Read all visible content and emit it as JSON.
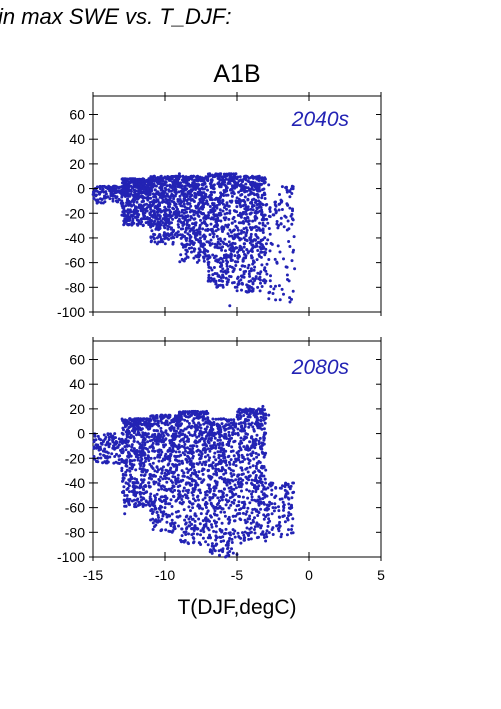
{
  "figure": {
    "header": "in max SWE vs. T_DJF:",
    "title": "A1B",
    "xlabel": "T(DJF,degC)"
  },
  "colors": {
    "points": "#2323b4",
    "period_label": "#2323b4",
    "axes": "#000000"
  },
  "chart_data": [
    {
      "type": "scatter",
      "title": "2040s",
      "xlabel": "",
      "ylabel": "",
      "xlim": [
        -15,
        5
      ],
      "ylim": [
        -100,
        75
      ],
      "x_ticks": [
        -15,
        -10,
        -5,
        0,
        5
      ],
      "y_ticks": [
        -100,
        -80,
        -60,
        -40,
        -20,
        0,
        20,
        40,
        60
      ],
      "x_tick_labels_shown": false,
      "grid": false,
      "point_count_approx": 3000,
      "distribution": [
        {
          "x_range": [
            -15,
            -13
          ],
          "y_range": [
            -12,
            2
          ]
        },
        {
          "x_range": [
            -13,
            -11
          ],
          "y_range": [
            -30,
            8
          ]
        },
        {
          "x_range": [
            -11,
            -9
          ],
          "y_range": [
            -45,
            10
          ]
        },
        {
          "x_range": [
            -9,
            -7
          ],
          "y_range": [
            -60,
            10
          ]
        },
        {
          "x_range": [
            -7,
            -5
          ],
          "y_range": [
            -80,
            12
          ]
        },
        {
          "x_range": [
            -5,
            -3
          ],
          "y_range": [
            -85,
            10
          ]
        },
        {
          "x_range": [
            -3,
            -1
          ],
          "y_range": [
            -92,
            2
          ]
        }
      ],
      "points": [
        [
          -14.6,
          -3
        ],
        [
          -14.2,
          -6
        ],
        [
          -13.5,
          -2
        ],
        [
          -13.0,
          -10
        ],
        [
          -12.5,
          -5
        ],
        [
          -12.0,
          -20
        ],
        [
          -11.5,
          5
        ],
        [
          -11.0,
          -30
        ],
        [
          -10.5,
          -15
        ],
        [
          -10.0,
          -40
        ],
        [
          -9.5,
          8
        ],
        [
          -9.0,
          -25
        ],
        [
          -8.5,
          -50
        ],
        [
          -8.0,
          -10
        ],
        [
          -7.5,
          -45
        ],
        [
          -7.0,
          -60
        ],
        [
          -6.5,
          -30
        ],
        [
          -6.0,
          -70
        ],
        [
          -5.5,
          -20
        ],
        [
          -5.0,
          -80
        ],
        [
          -4.5,
          -40
        ],
        [
          -4.0,
          -65
        ],
        [
          -3.5,
          -10
        ],
        [
          -3.0,
          -75
        ],
        [
          -2.5,
          -85
        ],
        [
          -2.0,
          -90
        ],
        [
          -1.5,
          -70
        ],
        [
          -1.0,
          -65
        ],
        [
          -9.0,
          12
        ],
        [
          -6.5,
          10
        ],
        [
          -5.0,
          8
        ],
        [
          -4.0,
          5
        ],
        [
          -2.8,
          3
        ],
        [
          -5.5,
          -95
        ],
        [
          -7.0,
          -75
        ]
      ]
    },
    {
      "type": "scatter",
      "title": "2080s",
      "xlabel": "T(DJF,degC)",
      "ylabel": "",
      "xlim": [
        -15,
        5
      ],
      "ylim": [
        -100,
        75
      ],
      "x_ticks": [
        -15,
        -10,
        -5,
        0,
        5
      ],
      "y_ticks": [
        -100,
        -80,
        -60,
        -40,
        -20,
        0,
        20,
        40,
        60
      ],
      "x_tick_labels_shown": true,
      "grid": false,
      "point_count_approx": 3000,
      "distribution": [
        {
          "x_range": [
            -15,
            -13
          ],
          "y_range": [
            -25,
            0
          ]
        },
        {
          "x_range": [
            -13,
            -11
          ],
          "y_range": [
            -60,
            12
          ]
        },
        {
          "x_range": [
            -11,
            -9
          ],
          "y_range": [
            -80,
            15
          ]
        },
        {
          "x_range": [
            -9,
            -7
          ],
          "y_range": [
            -90,
            18
          ]
        },
        {
          "x_range": [
            -7,
            -5
          ],
          "y_range": [
            -100,
            12
          ]
        },
        {
          "x_range": [
            -5,
            -3
          ],
          "y_range": [
            -90,
            20
          ]
        },
        {
          "x_range": [
            -3,
            -1
          ],
          "y_range": [
            -85,
            -40
          ]
        }
      ],
      "points": [
        [
          -14.8,
          -5
        ],
        [
          -14.5,
          -12
        ],
        [
          -14.0,
          -20
        ],
        [
          -13.5,
          -8
        ],
        [
          -13.0,
          -30
        ],
        [
          -12.5,
          -55
        ],
        [
          -12.0,
          10
        ],
        [
          -11.5,
          -45
        ],
        [
          -11.0,
          -70
        ],
        [
          -10.5,
          8
        ],
        [
          -10.0,
          -60
        ],
        [
          -9.5,
          -80
        ],
        [
          -9.0,
          15
        ],
        [
          -8.5,
          -40
        ],
        [
          -8.0,
          -85
        ],
        [
          -7.5,
          -20
        ],
        [
          -7.0,
          -90
        ],
        [
          -6.5,
          -50
        ],
        [
          -6.0,
          -95
        ],
        [
          -5.5,
          -70
        ],
        [
          -5.0,
          -98
        ],
        [
          -4.5,
          -60
        ],
        [
          -4.0,
          -80
        ],
        [
          -3.5,
          -30
        ],
        [
          -3.0,
          -45
        ],
        [
          -2.5,
          -60
        ],
        [
          -2.0,
          -75
        ],
        [
          -1.5,
          -82
        ],
        [
          -1.2,
          -60
        ],
        [
          -3.5,
          20
        ],
        [
          -3.2,
          22
        ],
        [
          -2.8,
          15
        ],
        [
          -8.0,
          18
        ],
        [
          -5.8,
          -100
        ],
        [
          -12.8,
          -65
        ]
      ]
    }
  ]
}
